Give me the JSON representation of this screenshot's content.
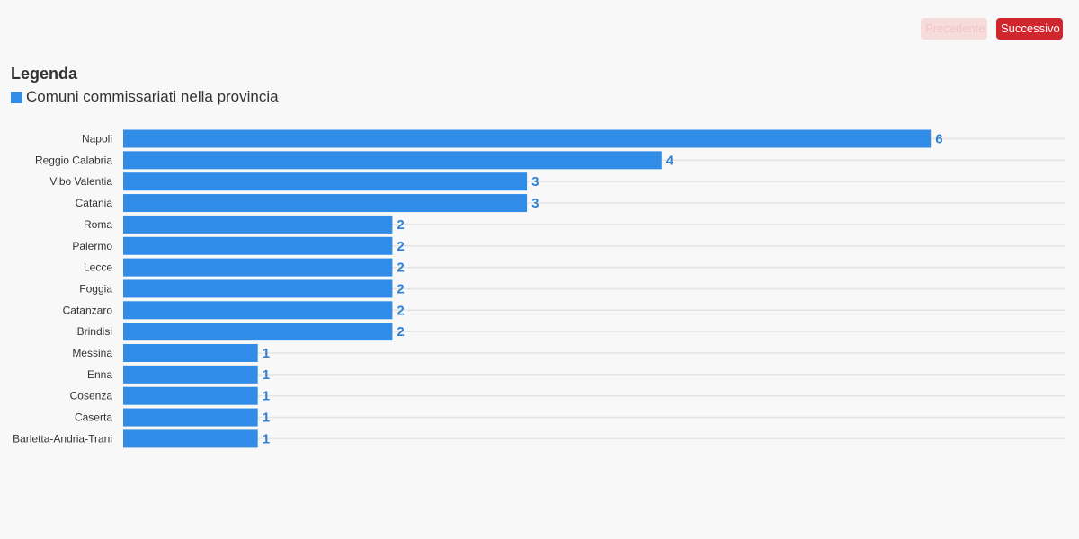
{
  "nav": {
    "prev_label": "Precedente",
    "next_label": "Successivo"
  },
  "legend": {
    "title": "Legenda",
    "items": [
      {
        "label": "Comuni commissariati nella provincia",
        "color": "#318ce7"
      }
    ]
  },
  "colors": {
    "bar": "#318ce7",
    "value_label": "#2f7fd6",
    "grid": "#e4e4e4",
    "button_primary": "#d0262e",
    "button_disabled": "#f7dcdc"
  },
  "chart_data": {
    "type": "bar",
    "orientation": "horizontal",
    "categories": [
      "Napoli",
      "Reggio Calabria",
      "Vibo Valentia",
      "Catania",
      "Roma",
      "Palermo",
      "Lecce",
      "Foggia",
      "Catanzaro",
      "Brindisi",
      "Messina",
      "Enna",
      "Cosenza",
      "Caserta",
      "Barletta-Andria-Trani"
    ],
    "series": [
      {
        "name": "Comuni commissariati nella provincia",
        "values": [
          6,
          4,
          3,
          3,
          2,
          2,
          2,
          2,
          2,
          2,
          1,
          1,
          1,
          1,
          1
        ]
      }
    ],
    "xlim": [
      0,
      7
    ],
    "grid": true,
    "legend_position": "top-left",
    "data_labels": true
  }
}
